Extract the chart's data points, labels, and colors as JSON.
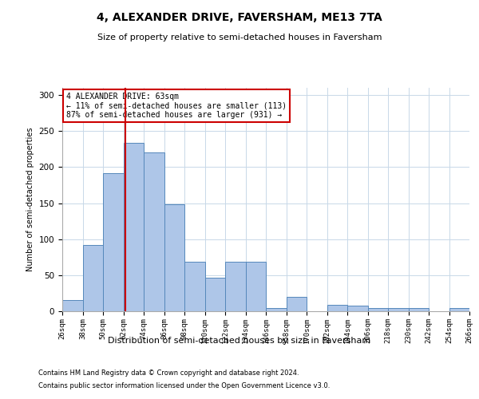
{
  "title": "4, ALEXANDER DRIVE, FAVERSHAM, ME13 7TA",
  "subtitle": "Size of property relative to semi-detached houses in Faversham",
  "xlabel": "Distribution of semi-detached houses by size in Faversham",
  "ylabel": "Number of semi-detached properties",
  "footer_line1": "Contains HM Land Registry data © Crown copyright and database right 2024.",
  "footer_line2": "Contains public sector information licensed under the Open Government Licence v3.0.",
  "annotation_title": "4 ALEXANDER DRIVE: 63sqm",
  "annotation_line1": "← 11% of semi-detached houses are smaller (113)",
  "annotation_line2": "87% of semi-detached houses are larger (931) →",
  "property_size_sqm": 63,
  "bin_edges": [
    26,
    38,
    50,
    62,
    74,
    86,
    98,
    110,
    122,
    134,
    146,
    158,
    170,
    182,
    194,
    206,
    218,
    230,
    242,
    254,
    266
  ],
  "bar_heights": [
    15,
    92,
    191,
    234,
    220,
    148,
    69,
    46,
    69,
    69,
    4,
    20,
    0,
    9,
    8,
    4,
    4,
    4,
    0,
    4
  ],
  "bar_color": "#aec6e8",
  "bar_edge_color": "#5588bb",
  "vline_color": "#cc0000",
  "vline_x": 63,
  "annotation_box_color": "#cc0000",
  "background_color": "#ffffff",
  "grid_color": "#c8d8e8",
  "ylim": [
    0,
    310
  ],
  "yticks": [
    0,
    50,
    100,
    150,
    200,
    250,
    300
  ]
}
